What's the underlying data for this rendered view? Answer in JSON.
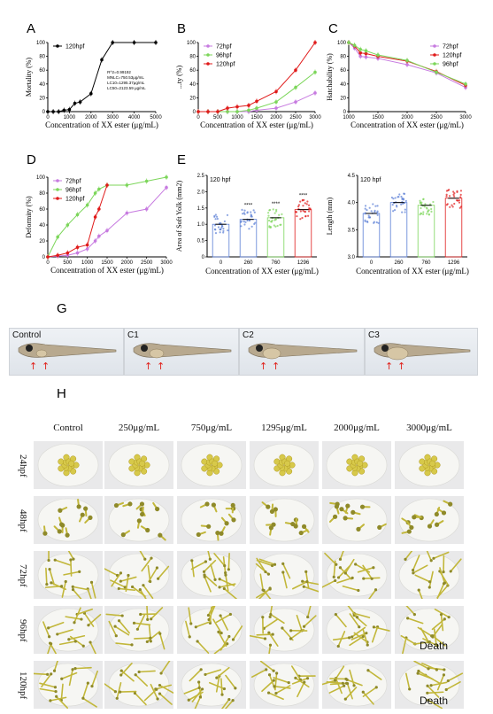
{
  "panel_labels": {
    "A": "A",
    "B": "B",
    "C": "C",
    "D": "D",
    "E": "E",
    "G": "G",
    "H": "H"
  },
  "chart_data": [
    {
      "id": "A",
      "type": "line",
      "xlabel": "Concentration of XX ester (μg/mL)",
      "ylabel": "Mortality (%)",
      "xlim": [
        0,
        5000
      ],
      "ylim": [
        0,
        100
      ],
      "xticks": [
        "0",
        "1000",
        "2000",
        "3000",
        "4000",
        "5000"
      ],
      "yticks": [
        "0",
        "20",
        "40",
        "60",
        "80",
        "100"
      ],
      "legend": "top-left",
      "series": [
        {
          "name": "120hpf",
          "color": "#000000",
          "x": [
            0,
            250,
            500,
            750,
            1000,
            1250,
            1500,
            2000,
            2500,
            3000,
            4000,
            5000
          ],
          "y": [
            0,
            0,
            0,
            2,
            3,
            12,
            14,
            26,
            75,
            100,
            100,
            100
          ]
        }
      ],
      "annotations": [
        "R^2=0.99192",
        "MNLC=750.53μg/mL",
        "LC10=1295.37μg/mL",
        "LC50=2123.59 μg/mL"
      ]
    },
    {
      "id": "B",
      "type": "line",
      "xlabel": "Concentration of XX ester (μg/mL)",
      "ylabel": "...ty (%)",
      "xlim": [
        0,
        3000
      ],
      "ylim": [
        0,
        100
      ],
      "xticks": [
        "0",
        "500",
        "1000",
        "1500",
        "2000",
        "2500",
        "3000"
      ],
      "yticks": [
        "0",
        "20",
        "40",
        "60",
        "80",
        "100"
      ],
      "legend": "top-left",
      "series": [
        {
          "name": "72hpf",
          "color": "#c77be0",
          "x": [
            0,
            250,
            500,
            750,
            1000,
            1295,
            1500,
            2000,
            2500,
            3000
          ],
          "y": [
            0,
            0,
            0,
            0,
            0,
            0,
            2,
            5,
            14,
            27
          ]
        },
        {
          "name": "96hpf",
          "color": "#7cd65a",
          "x": [
            0,
            250,
            500,
            750,
            1000,
            1295,
            1500,
            2000,
            2500,
            3000
          ],
          "y": [
            0,
            0,
            0,
            0,
            0,
            2,
            5,
            14,
            35,
            57
          ]
        },
        {
          "name": "120hpf",
          "color": "#e01a1a",
          "x": [
            0,
            250,
            500,
            750,
            1000,
            1295,
            1500,
            2000,
            2500,
            3000
          ],
          "y": [
            0,
            0,
            0,
            5,
            7,
            9,
            15,
            29,
            60,
            100
          ]
        }
      ]
    },
    {
      "id": "C",
      "type": "line",
      "xlabel": "Concentration of XX ester (μg/mL)",
      "ylabel": "Hatchability (%)",
      "xlim": [
        1000,
        3000
      ],
      "ylim": [
        0,
        100
      ],
      "xticks": [
        "1000",
        "1500",
        "2000",
        "2500",
        "3000"
      ],
      "yticks": [
        "0",
        "20",
        "40",
        "60",
        "80",
        "100"
      ],
      "legend": "top-right",
      "series": [
        {
          "name": "72hpf",
          "color": "#c77be0",
          "x": [
            1000,
            1100,
            1200,
            1295,
            1500,
            2000,
            2500,
            3000
          ],
          "y": [
            100,
            92,
            80,
            79,
            77,
            68,
            56,
            35
          ]
        },
        {
          "name": "120hpf",
          "color": "#e01a1a",
          "x": [
            1000,
            1100,
            1200,
            1295,
            1500,
            2000,
            2500,
            3000
          ],
          "y": [
            100,
            95,
            85,
            84,
            80,
            73,
            58,
            38
          ]
        },
        {
          "name": "96hpf",
          "color": "#7cd65a",
          "x": [
            1000,
            1100,
            1200,
            1295,
            1500,
            2000,
            2500,
            3000
          ],
          "y": [
            100,
            96,
            90,
            88,
            82,
            74,
            57,
            40
          ]
        }
      ]
    },
    {
      "id": "D",
      "type": "line",
      "xlabel": "Concentration of XX ester (μg/mL)",
      "ylabel": "Deformity (%)",
      "xlim": [
        0,
        3000
      ],
      "ylim": [
        0,
        100
      ],
      "xticks": [
        "0",
        "500",
        "1000",
        "1500",
        "2000",
        "2500",
        "3000"
      ],
      "yticks": [
        "0",
        "20",
        "40",
        "60",
        "80",
        "100"
      ],
      "legend": "top-left",
      "series": [
        {
          "name": "72hpf",
          "color": "#c77be0",
          "x": [
            0,
            250,
            500,
            750,
            1000,
            1200,
            1295,
            1500,
            2000,
            2500,
            3000
          ],
          "y": [
            0,
            1,
            2,
            5,
            10,
            20,
            26,
            33,
            55,
            60,
            87
          ]
        },
        {
          "name": "96hpf",
          "color": "#7cd65a",
          "x": [
            0,
            250,
            500,
            750,
            1000,
            1200,
            1295,
            1500,
            2000,
            2500,
            3000
          ],
          "y": [
            0,
            25,
            40,
            53,
            65,
            80,
            85,
            90,
            90,
            95,
            100
          ]
        },
        {
          "name": "120hpf",
          "color": "#e01a1a",
          "x": [
            0,
            250,
            500,
            750,
            1000,
            1200,
            1295,
            1500
          ],
          "y": [
            0,
            2,
            5,
            12,
            15,
            50,
            60,
            90
          ]
        }
      ]
    },
    {
      "id": "E1",
      "type": "scatter",
      "title": "120 hpf",
      "xlabel": "Concentration of XX ester (μg/mL)",
      "ylabel": "Area of Soft Yolk (mm2)",
      "categories": [
        "0",
        "260",
        "760",
        "1296"
      ],
      "ylim": [
        0,
        2.5
      ],
      "yticks": [
        "0",
        "0.5",
        "1.0",
        "1.5",
        "2.0",
        "2.5"
      ],
      "values": [
        1.0,
        1.15,
        1.2,
        1.45
      ],
      "colors": [
        "#5b7fd6",
        "#5b7fd6",
        "#7cd65a",
        "#e01a1a"
      ],
      "significance": [
        "",
        "****",
        "****",
        "****"
      ]
    },
    {
      "id": "E2",
      "type": "scatter",
      "title": "120 hpf",
      "xlabel": "Concentration of XX ester (μg/mL)",
      "ylabel": "Length (mm)",
      "categories": [
        "0",
        "260",
        "760",
        "1296"
      ],
      "ylim": [
        3.0,
        4.5
      ],
      "yticks": [
        "3.0",
        "3.5",
        "4.0",
        "4.5"
      ],
      "values": [
        3.8,
        4.0,
        3.95,
        4.08
      ],
      "colors": [
        "#5b7fd6",
        "#5b7fd6",
        "#7cd65a",
        "#e01a1a"
      ]
    }
  ],
  "panel_g": {
    "strips": [
      {
        "label": "Control",
        "arrows": 2
      },
      {
        "label": "C1",
        "arrows": 2
      },
      {
        "label": "C2",
        "arrows": 2
      },
      {
        "label": "C3",
        "arrows": 2
      }
    ]
  },
  "panel_h": {
    "columns": [
      "Control",
      "250μg/mL",
      "750μg/mL",
      "1295μg/mL",
      "2000μg/mL",
      "3000μg/mL"
    ],
    "rows": [
      "24hpf",
      "48hpf",
      "72hpf",
      "96hpf",
      "120hpf"
    ],
    "death_label": "Death",
    "death_cells": [
      [
        3,
        5
      ],
      [
        4,
        5
      ]
    ]
  }
}
